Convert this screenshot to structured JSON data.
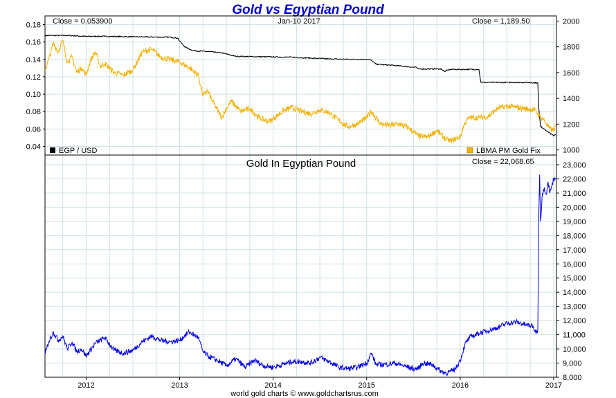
{
  "title": "Gold vs Egyptian Pound",
  "colors": {
    "title": "#0000cc",
    "egp": "#000000",
    "gold": "#f0b000",
    "gold_egp": "#0000e0",
    "grid": "#cfe0e8",
    "frame": "#000000"
  },
  "footer": "world gold charts © www.goldchartsrus.com",
  "chart_data": [
    {
      "type": "line",
      "panel": "top",
      "date_label": "Jan-10  2017",
      "close_left": "Close = 0.053900",
      "close_right": "Close = 1,189.50",
      "legend_left": "EGP / USD",
      "legend_right": "LBMA PM Gold Fix",
      "legend_placement": "bottom",
      "grid": true,
      "x_ticks": [
        "2012",
        "2013",
        "2014",
        "2015",
        "2016",
        "2017"
      ],
      "y_left_ticks": [
        "0.18",
        "0.16",
        "0.14",
        "0.12",
        "0.10",
        "0.08",
        "0.06",
        "0.04"
      ],
      "y_right_ticks": [
        "2000",
        "1800",
        "1600",
        "1400",
        "1200",
        "1000"
      ],
      "ylim_left": [
        0.03,
        0.19
      ],
      "ylim_right": [
        960,
        2040
      ],
      "xlim": [
        2011.56,
        2017.03
      ],
      "series": [
        {
          "name": "EGP / USD",
          "axis": "left",
          "x": [
            2011.56,
            2011.8,
            2012.0,
            2012.2,
            2012.5,
            2012.9,
            2012.98,
            2013.0,
            2013.05,
            2013.1,
            2013.15,
            2013.3,
            2013.45,
            2013.6,
            2013.9,
            2014.2,
            2014.4,
            2014.6,
            2014.9,
            2015.0,
            2015.05,
            2015.1,
            2015.3,
            2015.5,
            2015.53,
            2015.55,
            2015.8,
            2015.83,
            2015.86,
            2015.9,
            2016.0,
            2016.2,
            2016.22,
            2016.24,
            2016.5,
            2016.7,
            2016.83,
            2016.84,
            2016.86,
            2016.9,
            2016.95,
            2017.0,
            2017.02
          ],
          "values": [
            0.1675,
            0.1675,
            0.1665,
            0.1665,
            0.166,
            0.1655,
            0.1645,
            0.161,
            0.155,
            0.152,
            0.15,
            0.149,
            0.1475,
            0.1435,
            0.143,
            0.1425,
            0.1415,
            0.1405,
            0.14,
            0.14,
            0.139,
            0.1345,
            0.133,
            0.131,
            0.131,
            0.129,
            0.129,
            0.126,
            0.1275,
            0.1285,
            0.1285,
            0.1285,
            0.114,
            0.1135,
            0.1135,
            0.1135,
            0.113,
            0.085,
            0.063,
            0.06,
            0.056,
            0.052,
            0.054
          ]
        },
        {
          "name": "LBMA PM Gold Fix",
          "axis": "right",
          "x": [
            2011.56,
            2011.6,
            2011.65,
            2011.7,
            2011.75,
            2011.8,
            2011.85,
            2011.9,
            2011.95,
            2012.0,
            2012.05,
            2012.1,
            2012.15,
            2012.2,
            2012.3,
            2012.4,
            2012.5,
            2012.6,
            2012.7,
            2012.8,
            2012.9,
            2013.0,
            2013.1,
            2013.2,
            2013.25,
            2013.3,
            2013.35,
            2013.45,
            2013.5,
            2013.55,
            2013.65,
            2013.75,
            2013.85,
            2013.95,
            2014.0,
            2014.1,
            2014.2,
            2014.3,
            2014.4,
            2014.5,
            2014.6,
            2014.7,
            2014.8,
            2014.9,
            2015.0,
            2015.05,
            2015.15,
            2015.25,
            2015.35,
            2015.45,
            2015.55,
            2015.65,
            2015.75,
            2015.85,
            2015.9,
            2016.0,
            2016.05,
            2016.1,
            2016.2,
            2016.3,
            2016.4,
            2016.5,
            2016.6,
            2016.7,
            2016.8,
            2016.85,
            2016.9,
            2016.95,
            2017.0,
            2017.02
          ],
          "values": [
            1620,
            1700,
            1830,
            1760,
            1850,
            1680,
            1720,
            1600,
            1640,
            1580,
            1700,
            1760,
            1650,
            1670,
            1600,
            1580,
            1620,
            1760,
            1780,
            1720,
            1700,
            1680,
            1640,
            1580,
            1420,
            1460,
            1380,
            1250,
            1320,
            1380,
            1300,
            1320,
            1250,
            1220,
            1240,
            1300,
            1330,
            1300,
            1280,
            1310,
            1290,
            1230,
            1180,
            1200,
            1250,
            1300,
            1200,
            1190,
            1200,
            1170,
            1110,
            1100,
            1150,
            1080,
            1070,
            1100,
            1210,
            1250,
            1250,
            1260,
            1320,
            1340,
            1330,
            1320,
            1310,
            1260,
            1230,
            1170,
            1150,
            1190
          ]
        }
      ]
    },
    {
      "type": "line",
      "panel": "bottom",
      "title": "Gold In Egyptian Pound",
      "close_right": "Close = 22,068.65",
      "grid": true,
      "x_ticks": [
        "2012",
        "2013",
        "2014",
        "2015",
        "2016",
        "2017"
      ],
      "y_right_ticks": [
        "23,000",
        "22,000",
        "21,000",
        "20,000",
        "19,000",
        "18,000",
        "17,000",
        "16,000",
        "15,000",
        "14,000",
        "13,000",
        "12,000",
        "11,000",
        "10,000",
        "9,000",
        "8,000"
      ],
      "ylim": [
        8000,
        23000
      ],
      "xlim": [
        2011.56,
        2017.03
      ],
      "series": [
        {
          "name": "Gold In Egyptian Pound",
          "x": [
            2011.56,
            2011.6,
            2011.65,
            2011.7,
            2011.75,
            2011.8,
            2011.85,
            2011.9,
            2011.95,
            2012.0,
            2012.1,
            2012.2,
            2012.3,
            2012.4,
            2012.5,
            2012.6,
            2012.7,
            2012.8,
            2012.9,
            2013.0,
            2013.05,
            2013.1,
            2013.2,
            2013.25,
            2013.3,
            2013.4,
            2013.5,
            2013.6,
            2013.7,
            2013.8,
            2013.9,
            2014.0,
            2014.1,
            2014.2,
            2014.3,
            2014.4,
            2014.5,
            2014.6,
            2014.7,
            2014.8,
            2014.9,
            2015.0,
            2015.05,
            2015.1,
            2015.2,
            2015.3,
            2015.4,
            2015.5,
            2015.55,
            2015.6,
            2015.7,
            2015.8,
            2015.85,
            2015.9,
            2015.95,
            2016.0,
            2016.05,
            2016.1,
            2016.2,
            2016.3,
            2016.4,
            2016.5,
            2016.6,
            2016.7,
            2016.78,
            2016.8,
            2016.83,
            2016.84,
            2016.85,
            2016.86,
            2016.88,
            2016.9,
            2016.92,
            2016.94,
            2016.96,
            2016.98,
            2017.0,
            2017.02
          ],
          "values": [
            9600,
            10500,
            11200,
            10600,
            10900,
            10000,
            10500,
            9800,
            10000,
            9500,
            10400,
            10800,
            9900,
            9700,
            9900,
            10500,
            10900,
            10600,
            10500,
            10600,
            10900,
            11200,
            10800,
            9800,
            9500,
            9200,
            8800,
            9300,
            8700,
            9200,
            8800,
            8700,
            8900,
            9100,
            9100,
            9000,
            9400,
            9100,
            8700,
            8600,
            8700,
            9000,
            9700,
            8900,
            8900,
            9000,
            8800,
            8600,
            8600,
            9000,
            8900,
            8400,
            8300,
            8400,
            8600,
            9200,
            10300,
            10800,
            11100,
            11300,
            11500,
            11800,
            11900,
            11700,
            11600,
            11200,
            11300,
            19000,
            22300,
            19000,
            21000,
            21400,
            20900,
            21800,
            21000,
            21500,
            22000,
            22068
          ]
        }
      ]
    }
  ]
}
